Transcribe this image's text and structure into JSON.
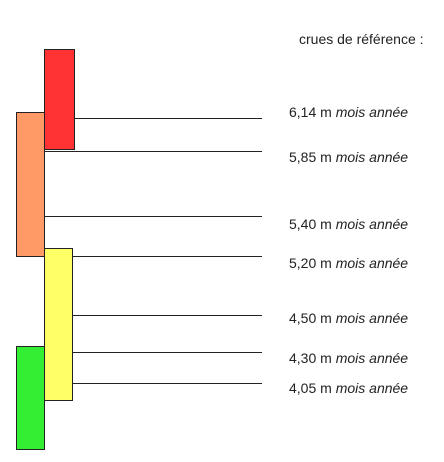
{
  "legend_title": "crues de référence :",
  "bars": [
    {
      "name": "red",
      "color": "#ff3333"
    },
    {
      "name": "orange",
      "color": "#ff9966"
    },
    {
      "name": "yellow",
      "color": "#ffff66"
    },
    {
      "name": "green",
      "color": "#33ee33"
    }
  ],
  "references": [
    {
      "level": "6,14 m",
      "meta": "mois année"
    },
    {
      "level": "5,85 m",
      "meta": "mois année"
    },
    {
      "level": "5,40 m",
      "meta": "mois année"
    },
    {
      "level": "5,20 m",
      "meta": "mois année"
    },
    {
      "level": "4,50 m",
      "meta": "mois année"
    },
    {
      "level": "4,30 m",
      "meta": "mois année"
    },
    {
      "level": "4,05 m",
      "meta": "mois année"
    }
  ]
}
